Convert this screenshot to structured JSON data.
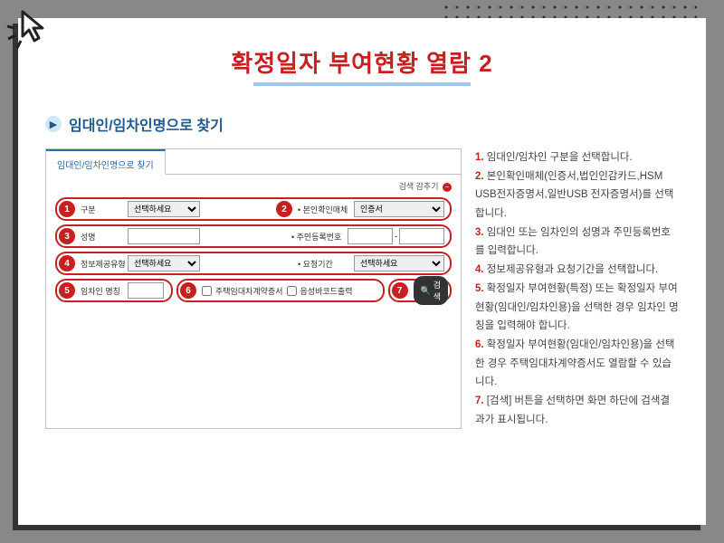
{
  "title": "확정일자 부여현황 열람 2",
  "subtitle": "임대인/임차인명으로 찾기",
  "tab_label": "임대인/임차인명으로 찾기",
  "hide_search_label": "검색 감추기",
  "form": {
    "row1": {
      "num": "1",
      "label": "구분",
      "select": "선택하세요",
      "num2": "2",
      "label2": "• 본인확인매체",
      "select2": "인증서"
    },
    "row2": {
      "num": "3",
      "label": "성명",
      "label2": "• 주민등록번호"
    },
    "row3": {
      "num": "4",
      "label": "정보제공유형",
      "select": "선택하세요",
      "label2": "• 요청기간",
      "select2": "선택하세요"
    },
    "row4": {
      "num": "5",
      "label": "임차인 명칭",
      "num2": "6",
      "check1": "주택임대차계약증서",
      "check2": "음성바코드출력",
      "num3": "7",
      "search": "검색"
    }
  },
  "instructions": [
    {
      "n": "1.",
      "t": "임대인/임차인 구분을 선택합니다."
    },
    {
      "n": "2.",
      "t": "본인확인매체(인증서,법인인감카드,HSM USB전자증명서,일반USB 전자증명서)를 선택합니다."
    },
    {
      "n": "3.",
      "t": "임대인 또는 임차인의 성명과 주민등록번호를 입력합니다."
    },
    {
      "n": "4.",
      "t": "정보제공유형과 요청기간을 선택합니다."
    },
    {
      "n": "5.",
      "t": "확정일자 부여현황(특정) 또는 확정일자 부여현황(임대인/임차인용)을 선택한 경우 임차인 명칭을 입력해야 합니다."
    },
    {
      "n": "6.",
      "t": "확정일자 부여현황(임대인/임차인용)을 선택한 경우 주택임대차계약증서도 열람할 수 있습니다."
    },
    {
      "n": "7.",
      "t": "[검색] 버튼을 선택하면 화면 하단에 검색결과가 표시됩니다."
    }
  ],
  "colors": {
    "red": "#c62020",
    "blue": "#1e5a8e"
  }
}
